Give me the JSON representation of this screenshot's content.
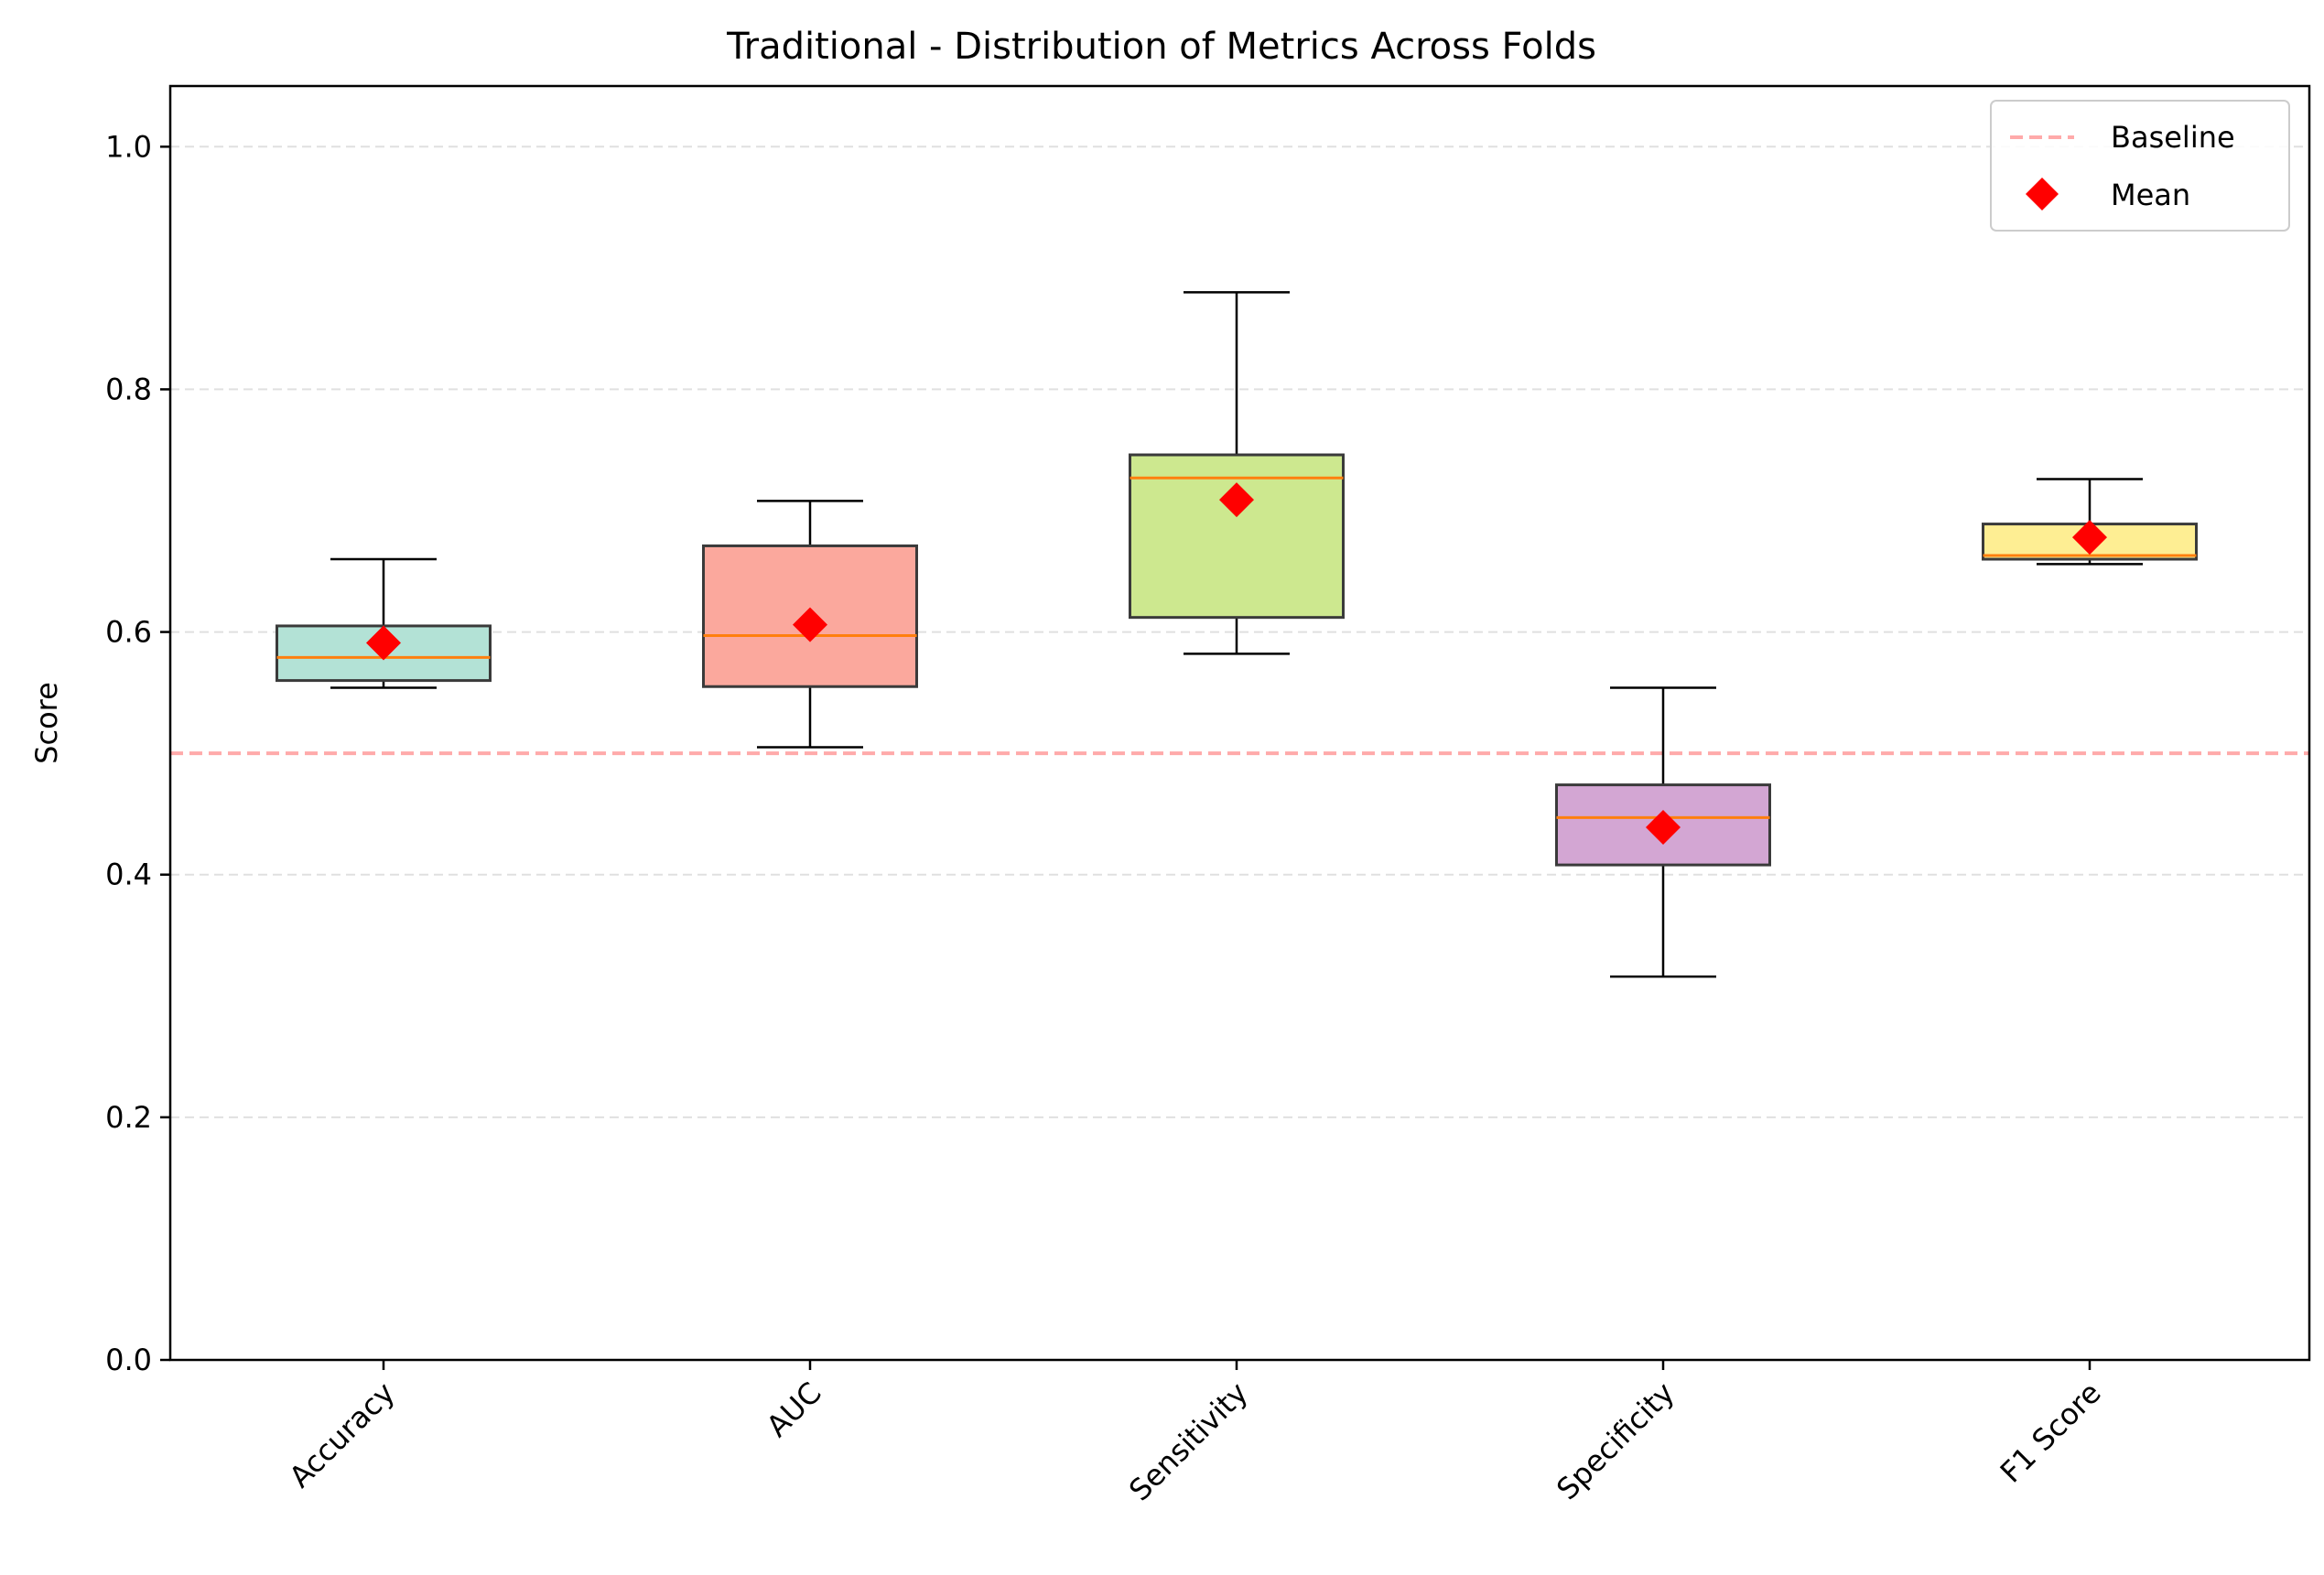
{
  "chart_data": {
    "type": "boxplot",
    "title": "Traditional - Distribution of Metrics Across Folds",
    "xlabel": "",
    "ylabel": "Score",
    "ylim": [
      0.0,
      1.05
    ],
    "yticks": [
      0.0,
      0.2,
      0.4,
      0.6,
      0.8,
      1.0
    ],
    "ytick_labels": [
      "0.0",
      "0.2",
      "0.4",
      "0.6",
      "0.8",
      "1.0"
    ],
    "grid": {
      "y": true,
      "style": "dashed"
    },
    "categories": [
      "Accuracy",
      "AUC",
      "Sensitivity",
      "Specificity",
      "F1 Score"
    ],
    "boxes": [
      {
        "name": "Accuracy",
        "whisker_low": 0.554,
        "q1": 0.56,
        "median": 0.579,
        "q3": 0.605,
        "whisker_high": 0.66,
        "mean": 0.591,
        "color": "#b3e2d6"
      },
      {
        "name": "AUC",
        "whisker_low": 0.505,
        "q1": 0.555,
        "median": 0.597,
        "q3": 0.671,
        "whisker_high": 0.708,
        "mean": 0.606,
        "color": "#fba89d"
      },
      {
        "name": "Sensitivity",
        "whisker_low": 0.582,
        "q1": 0.612,
        "median": 0.727,
        "q3": 0.746,
        "whisker_high": 0.88,
        "mean": 0.709,
        "color": "#cde88f"
      },
      {
        "name": "Specificity",
        "whisker_low": 0.316,
        "q1": 0.408,
        "median": 0.447,
        "q3": 0.474,
        "whisker_high": 0.554,
        "mean": 0.439,
        "color": "#d3a6d3"
      },
      {
        "name": "F1 Score",
        "whisker_low": 0.656,
        "q1": 0.66,
        "median": 0.663,
        "q3": 0.689,
        "whisker_high": 0.726,
        "mean": 0.678,
        "color": "#feee93"
      }
    ],
    "baseline": {
      "label": "Baseline",
      "value": 0.5,
      "color": "#ffaaaa"
    },
    "mean_marker": {
      "label": "Mean",
      "color": "#ff0000",
      "shape": "diamond"
    },
    "median_color": "#ff7f0e",
    "legend": {
      "position": "top-right",
      "entries": [
        "Baseline",
        "Mean"
      ]
    }
  }
}
